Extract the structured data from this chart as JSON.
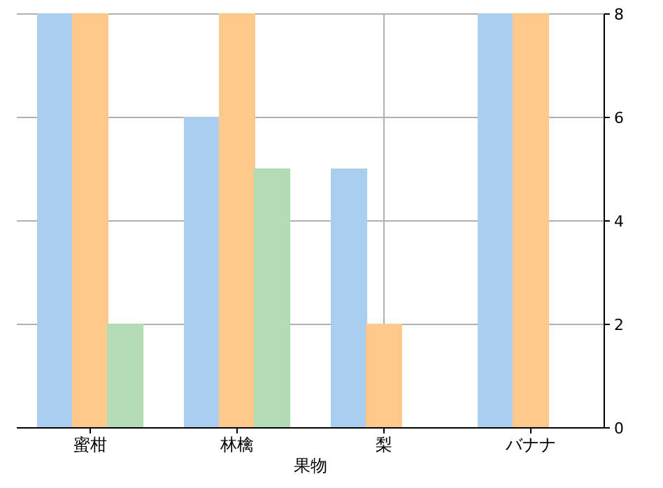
{
  "chart_data": {
    "type": "bar",
    "xlabel": "果物",
    "categories": [
      "蜜柑",
      "林檎",
      "梨",
      "バナナ"
    ],
    "series": [
      {
        "color": "#aacfee",
        "values": [
          8,
          6,
          5,
          8
        ]
      },
      {
        "color": "#ffc98c",
        "values": [
          8,
          8,
          2,
          8
        ]
      },
      {
        "color": "#b2dcb3",
        "values": [
          2,
          5,
          null,
          null
        ]
      }
    ],
    "ylim": [
      0,
      8
    ],
    "yticks": [
      0,
      2,
      4,
      6,
      8
    ],
    "grid": true
  }
}
